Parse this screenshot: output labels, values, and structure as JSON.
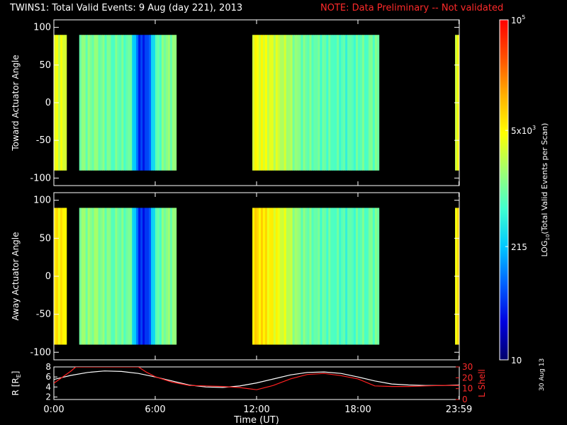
{
  "header": {
    "title": "TWINS1: Total Valid Events:  9 Aug (day 221), 2013",
    "note": "NOTE: Data Preliminary -- Not validated"
  },
  "colorbar": {
    "label_main": "LOG",
    "label_sub": "10",
    "label_rest": "(Total Valid  Events per Scan)",
    "ticks": [
      {
        "text": "10",
        "sup": "5",
        "value": 100000
      },
      {
        "text": "5x10",
        "sup": "3",
        "value": 5000
      },
      {
        "text": "215",
        "sup": "",
        "value": 215
      },
      {
        "text": "10",
        "sup": "",
        "value": 10
      }
    ],
    "colors": [
      "#00006a",
      "#0000e0",
      "#0060ff",
      "#00c8ff",
      "#40ffd0",
      "#a0ff70",
      "#ffff00",
      "#ffb000",
      "#ff5000",
      "#ff0000"
    ]
  },
  "footer": {
    "xlabel": "Time (UT)",
    "datestamp": "30 Aug 13"
  },
  "chart_data": [
    {
      "type": "heatmap",
      "panel": "toward",
      "ylabel": "Toward Actuator Angle",
      "xlim": [
        0,
        24
      ],
      "ylim": [
        -110,
        110
      ],
      "yticks": [
        100,
        50,
        0,
        -50,
        -100
      ],
      "y_extent": [
        -90,
        90
      ],
      "scale": "log",
      "zlim": [
        10,
        100000
      ],
      "time_hours": [
        0.0,
        0.5,
        0.75,
        1.5,
        2.5,
        3.5,
        4.5,
        5.0,
        5.5,
        6.0,
        6.5,
        7.25,
        11.75,
        12.5,
        13.5,
        14.5,
        15.5,
        16.5,
        17.5,
        18.5,
        19.25,
        23.75,
        24.0
      ],
      "column_values": [
        3500,
        3500,
        0,
        1300,
        1100,
        1000,
        800,
        40,
        60,
        700,
        1300,
        0,
        4500,
        3500,
        2500,
        1100,
        900,
        800,
        700,
        1000,
        0,
        4000
      ],
      "gaps": [
        [
          0.5,
          0.75
        ],
        [
          7.25,
          11.75
        ],
        [
          19.25,
          23.75
        ]
      ]
    },
    {
      "type": "heatmap",
      "panel": "away",
      "ylabel": "Away Actuator Angle",
      "xlim": [
        0,
        24
      ],
      "ylim": [
        -110,
        110
      ],
      "yticks": [
        100,
        50,
        0,
        -50,
        -100
      ],
      "y_extent": [
        -90,
        90
      ],
      "scale": "log",
      "zlim": [
        10,
        100000
      ],
      "time_hours": [
        0.0,
        0.5,
        0.75,
        1.5,
        2.5,
        3.5,
        4.5,
        5.0,
        5.5,
        6.0,
        6.5,
        7.25,
        11.75,
        12.5,
        13.5,
        14.5,
        15.5,
        16.5,
        17.5,
        18.5,
        19.25,
        23.75,
        24.0
      ],
      "column_values": [
        6000,
        6000,
        0,
        1500,
        1300,
        1100,
        900,
        40,
        50,
        700,
        1300,
        0,
        8000,
        6000,
        3500,
        1200,
        900,
        800,
        700,
        1000,
        0,
        6000
      ],
      "gaps": [
        [
          0.5,
          0.75
        ],
        [
          7.25,
          11.75
        ],
        [
          19.25,
          23.75
        ]
      ]
    },
    {
      "type": "line",
      "panel": "orbit",
      "ylabel_left": "R [R",
      "ylabel_left_sub": "E",
      "ylabel_left_end": "]",
      "ylabel_right": "L Shell",
      "ylim_left": [
        1.5,
        8
      ],
      "ylim_right": [
        0,
        30
      ],
      "yticks_left": [
        8,
        6,
        4,
        2
      ],
      "yticks_right": [
        30,
        20,
        10,
        0
      ],
      "xticks": [
        {
          "label": "0:00",
          "value": 0
        },
        {
          "label": "6:00",
          "value": 6
        },
        {
          "label": "12:00",
          "value": 12
        },
        {
          "label": "18:00",
          "value": 18
        },
        {
          "label": "23:59",
          "value": 23.98
        }
      ],
      "series": [
        {
          "name": "R",
          "color": "#ffffff",
          "axis": "left",
          "x": [
            0,
            1,
            2,
            3,
            4,
            5,
            6,
            7,
            8,
            9,
            10,
            11,
            12,
            13,
            14,
            15,
            16,
            17,
            18,
            19,
            20,
            21,
            22,
            23,
            24
          ],
          "y": [
            5.5,
            6.3,
            6.9,
            7.2,
            7.1,
            6.7,
            6.0,
            5.2,
            4.4,
            4.0,
            3.9,
            4.2,
            4.8,
            5.6,
            6.4,
            6.9,
            7.0,
            6.7,
            6.0,
            5.2,
            4.6,
            4.4,
            4.3,
            4.3,
            4.4
          ]
        },
        {
          "name": "L Shell",
          "color": "#ff2020",
          "axis": "right",
          "x": [
            0,
            1,
            1.3,
            5.0,
            5.5,
            6,
            7,
            8,
            9,
            10,
            11,
            12,
            13,
            14,
            15,
            16,
            17,
            18,
            19,
            20,
            21,
            22,
            23,
            24
          ],
          "y": [
            15,
            26,
            30,
            30,
            25,
            21,
            16,
            13,
            12.5,
            12,
            11,
            9,
            13,
            19,
            23,
            24,
            22,
            19,
            12.5,
            12,
            12,
            12.5,
            13,
            13
          ]
        }
      ]
    }
  ]
}
